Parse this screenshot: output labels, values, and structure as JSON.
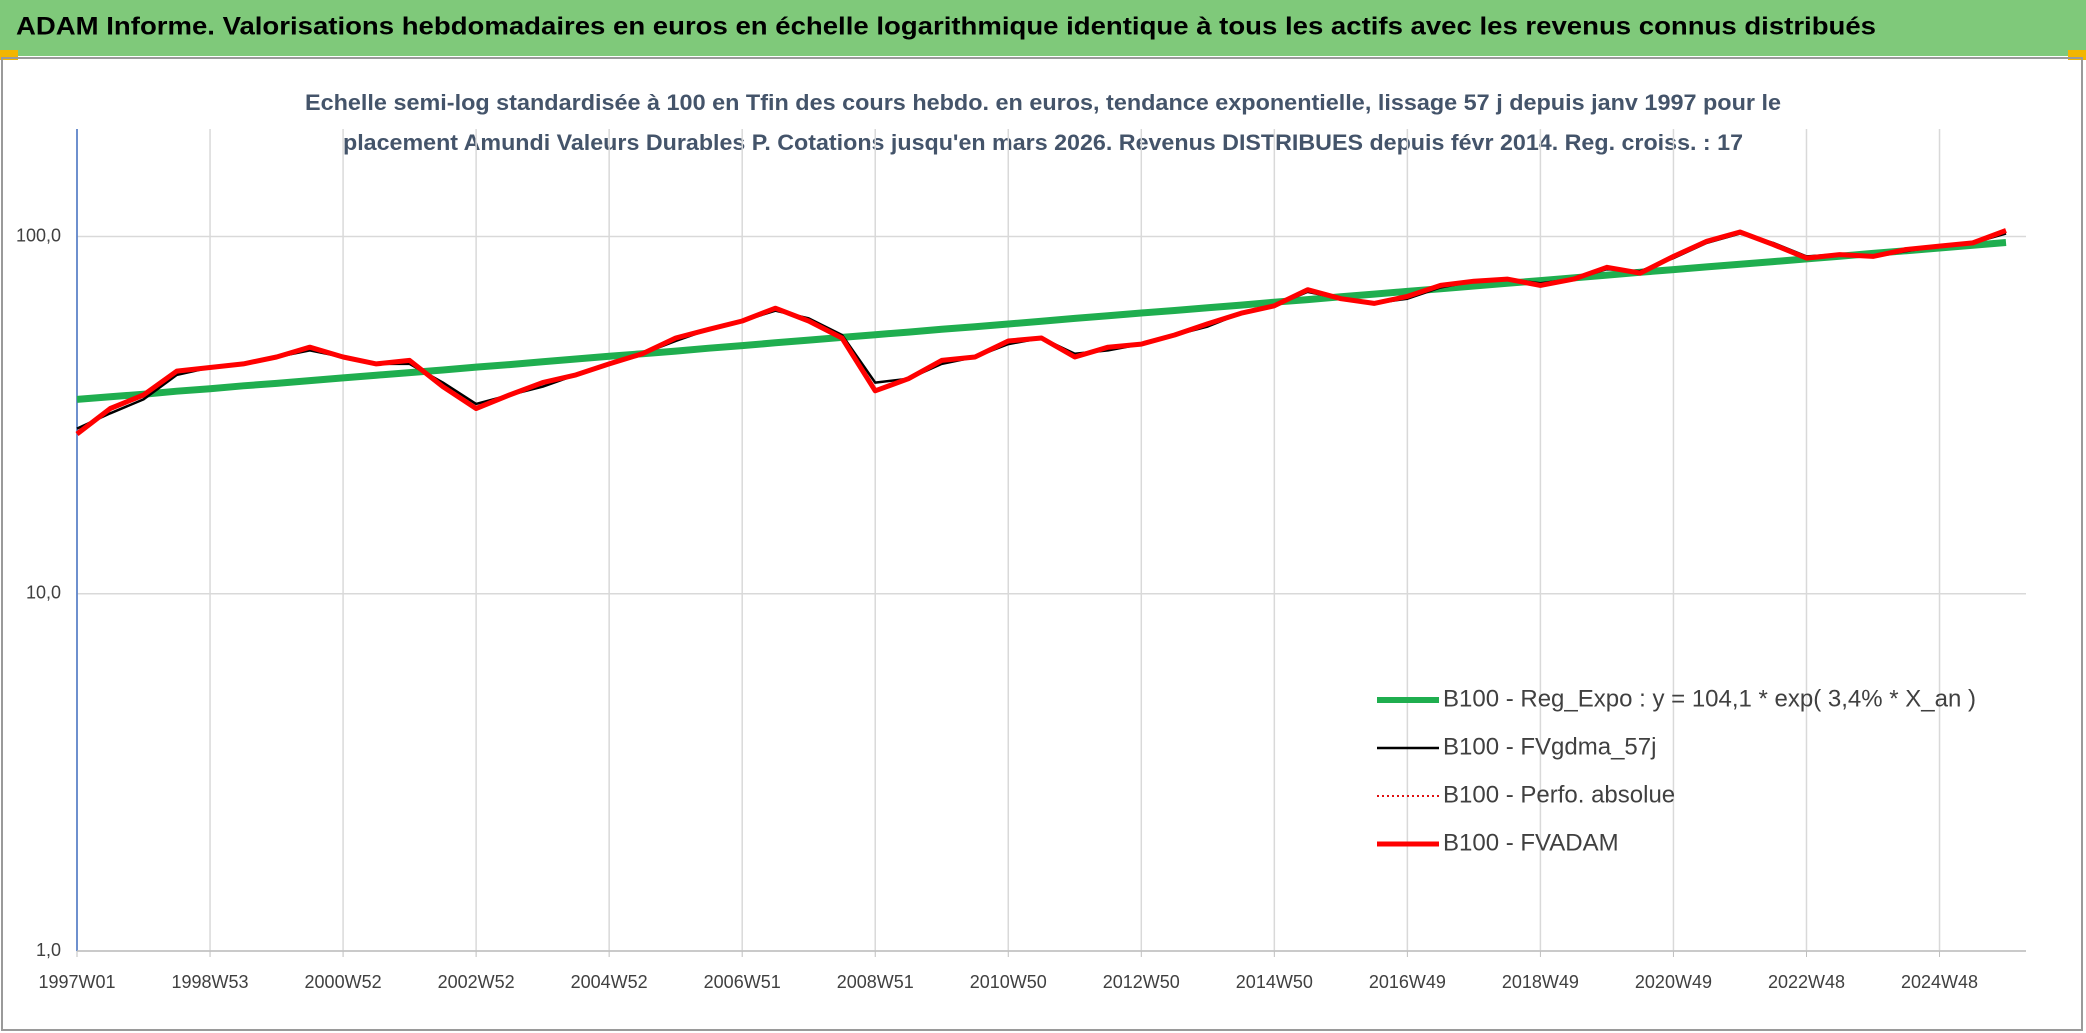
{
  "header": {
    "title": "ADAM Informe. Valorisations hebdomadaires en euros en échelle logarithmique identique à tous les actifs avec les revenus connus distribués"
  },
  "chart_data": {
    "type": "line",
    "title": [
      "Echelle semi-log standardisée à 100 en Tfin des cours hebdo. en euros, tendance exponentielle, lissage 57 j depuis janv 1997 pour le",
      "placement Amundi Valeurs Durables P. Cotations jusqu'en mars 2026. Revenus DISTRIBUES depuis févr 2014. Reg. croiss. : 17"
    ],
    "categories": [
      "1997W01",
      null,
      null,
      null,
      "1998W53",
      null,
      null,
      null,
      "2000W52",
      null,
      null,
      null,
      "2002W52",
      null,
      null,
      null,
      "2004W52",
      null,
      null,
      null,
      "2006W51",
      null,
      null,
      null,
      "2008W51",
      null,
      null,
      null,
      "2010W50",
      null,
      null,
      null,
      "2012W50",
      null,
      null,
      null,
      "2014W50",
      null,
      null,
      null,
      "2016W49",
      null,
      null,
      null,
      "2018W49",
      null,
      null,
      null,
      "2020W49",
      null,
      null,
      null,
      "2022W48",
      null,
      null,
      null,
      "2024W48",
      null,
      null
    ],
    "log_scale": true,
    "ylim": [
      1,
      200
    ],
    "yticks": [
      {
        "value": 1,
        "label": "1,0"
      },
      {
        "value": 10,
        "label": "10,0"
      },
      {
        "value": 100,
        "label": "100,0"
      }
    ],
    "grid": true,
    "legend": "bottom-right",
    "series": [
      {
        "name": "B100 - Reg_Expo : y = 104,1 * exp( 3,4% *  X_an )",
        "color": "#1fae4f",
        "line_style": "solid",
        "values": [
          35.0,
          35.6,
          36.2,
          36.9,
          37.5,
          38.2,
          38.8,
          39.5,
          40.2,
          40.9,
          41.6,
          42.3,
          43.1,
          43.8,
          44.6,
          45.4,
          46.2,
          47.0,
          47.8,
          48.7,
          49.5,
          50.4,
          51.3,
          52.2,
          53.1,
          54.0,
          55.0,
          55.9,
          56.9,
          57.9,
          59.0,
          60.0,
          61.1,
          62.1,
          63.2,
          64.3,
          65.5,
          66.6,
          67.8,
          69.0,
          70.2,
          71.4,
          72.7,
          74.0,
          75.3,
          76.6,
          78.0,
          79.4,
          80.8,
          82.2,
          83.6,
          85.1,
          86.6,
          88.1,
          89.7,
          91.3,
          92.9,
          94.5,
          96.2
        ]
      },
      {
        "name": "B100 - FVgdma_57j",
        "color": "#000000",
        "line_style": "solid",
        "values": [
          29,
          32,
          35,
          41,
          43,
          44,
          46,
          48,
          46,
          44,
          44,
          39,
          34,
          36,
          38,
          41,
          44,
          47,
          51,
          55,
          58,
          62,
          59,
          53,
          39,
          40,
          44,
          46,
          50,
          52,
          47,
          48,
          50,
          53,
          56,
          61,
          64,
          70,
          67,
          65,
          67,
          72,
          75,
          76,
          74,
          76,
          81,
          80,
          87,
          96,
          102,
          96,
          88,
          89,
          88,
          91,
          94,
          96,
          102
        ]
      },
      {
        "name": "B100 - Perfo. absolue",
        "color": "#e01010",
        "line_style": "dotted",
        "values": [
          28,
          33,
          36,
          42,
          43,
          44,
          46,
          49,
          46,
          44,
          45,
          38,
          33,
          36,
          39,
          41,
          44,
          47,
          52,
          55,
          58,
          63,
          58,
          52,
          37,
          40,
          45,
          46,
          51,
          52,
          46,
          49,
          50,
          53,
          57,
          61,
          64,
          71,
          67,
          65,
          68,
          73,
          75,
          76,
          73,
          76,
          82,
          79,
          88,
          97,
          103,
          95,
          87,
          89,
          88,
          92,
          94,
          96,
          104
        ]
      },
      {
        "name": "B100 - FVADAM",
        "color": "#ff0000",
        "line_style": "solid",
        "values": [
          28,
          33,
          36,
          42,
          43,
          44,
          46,
          49,
          46,
          44,
          45,
          38,
          33,
          36,
          39,
          41,
          44,
          47,
          52,
          55,
          58,
          63,
          58,
          52,
          37,
          40,
          45,
          46,
          51,
          52,
          46,
          49,
          50,
          53,
          57,
          61,
          64,
          71,
          67,
          65,
          68,
          73,
          75,
          76,
          73,
          76,
          82,
          79,
          88,
          97,
          103,
          95,
          87,
          89,
          88,
          92,
          94,
          96,
          104
        ]
      }
    ]
  }
}
